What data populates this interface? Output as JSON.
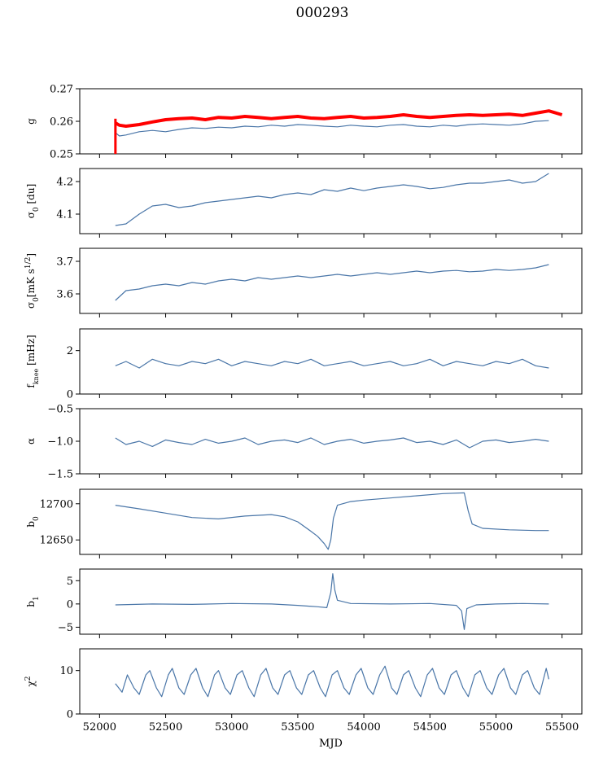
{
  "figure": {
    "title": "000293"
  },
  "style": {
    "series_color": "#4a76a8",
    "reference_color": "#ff0000",
    "axis_color": "#000000"
  },
  "chart_data": [
    {
      "type": "line",
      "ylabel": "g",
      "ylabel_html": "g",
      "xlim": [
        51850,
        55650
      ],
      "ylim": [
        0.25,
        0.27
      ],
      "yticks": [
        0.25,
        0.26,
        0.27
      ],
      "ytick_labels": [
        "0.25",
        "0.26",
        "0.27"
      ],
      "series": [
        {
          "color": "#4a76a8",
          "x": [
            52120,
            52150,
            52200,
            52300,
            52400,
            52500,
            52600,
            52700,
            52800,
            52900,
            53000,
            53100,
            53200,
            53300,
            53400,
            53500,
            53600,
            53700,
            53800,
            53900,
            54000,
            54100,
            54200,
            54300,
            54400,
            54500,
            54600,
            54700,
            54800,
            54900,
            55000,
            55100,
            55200,
            55300,
            55400
          ],
          "y": [
            0.2565,
            0.2555,
            0.2558,
            0.2568,
            0.2572,
            0.2568,
            0.2575,
            0.258,
            0.2578,
            0.2582,
            0.258,
            0.2585,
            0.2583,
            0.2588,
            0.2585,
            0.259,
            0.2588,
            0.2585,
            0.2583,
            0.2588,
            0.2585,
            0.2583,
            0.2588,
            0.259,
            0.2585,
            0.2583,
            0.2588,
            0.2585,
            0.259,
            0.2592,
            0.259,
            0.2588,
            0.2592,
            0.26,
            0.2602
          ]
        },
        {
          "color": "#ff0000",
          "x": [
            52120,
            52150,
            52200,
            52300,
            52400,
            52500,
            52600,
            52700,
            52800,
            52900,
            53000,
            53100,
            53200,
            53300,
            53400,
            53500,
            53600,
            53700,
            53800,
            53900,
            54000,
            54100,
            54200,
            54300,
            54400,
            54500,
            54600,
            54700,
            54800,
            54900,
            55000,
            55100,
            55200,
            55300,
            55400,
            55500
          ],
          "y": [
            0.2595,
            0.2588,
            0.2585,
            0.259,
            0.2598,
            0.2605,
            0.2608,
            0.261,
            0.2605,
            0.2612,
            0.261,
            0.2615,
            0.2612,
            0.2608,
            0.2612,
            0.2615,
            0.261,
            0.2608,
            0.2612,
            0.2615,
            0.261,
            0.2612,
            0.2615,
            0.262,
            0.2615,
            0.2612,
            0.2615,
            0.2618,
            0.262,
            0.2618,
            0.262,
            0.2622,
            0.2618,
            0.2625,
            0.2632,
            0.262
          ]
        }
      ]
    },
    {
      "type": "line",
      "ylabel": "σ0 [du]",
      "ylabel_html": "σ<tspan baseline-shift='sub' font-size='9'>0</tspan> [du]",
      "xlim": [
        51850,
        55650
      ],
      "ylim": [
        4.04,
        4.24
      ],
      "yticks": [
        4.1,
        4.2
      ],
      "ytick_labels": [
        "4.1",
        "4.2"
      ],
      "series": [
        {
          "color": "#4a76a8",
          "x": [
            52120,
            52200,
            52300,
            52400,
            52500,
            52600,
            52700,
            52800,
            52900,
            53000,
            53100,
            53200,
            53300,
            53400,
            53500,
            53600,
            53700,
            53800,
            53900,
            54000,
            54100,
            54200,
            54300,
            54400,
            54500,
            54600,
            54700,
            54800,
            54900,
            55000,
            55100,
            55200,
            55300,
            55400
          ],
          "y": [
            4.065,
            4.07,
            4.1,
            4.125,
            4.13,
            4.12,
            4.125,
            4.135,
            4.14,
            4.145,
            4.15,
            4.155,
            4.15,
            4.16,
            4.165,
            4.16,
            4.175,
            4.17,
            4.18,
            4.172,
            4.18,
            4.185,
            4.19,
            4.185,
            4.178,
            4.182,
            4.19,
            4.195,
            4.195,
            4.2,
            4.205,
            4.195,
            4.2,
            4.225
          ]
        }
      ]
    },
    {
      "type": "line",
      "ylabel": "σ0[mK s^1/2]",
      "ylabel_html": "σ<tspan baseline-shift='sub' font-size='9'>0</tspan>[mK s<tspan baseline-shift='super' font-size='9'>1/2</tspan>]",
      "xlim": [
        51850,
        55650
      ],
      "ylim": [
        3.54,
        3.74
      ],
      "yticks": [
        3.6,
        3.7
      ],
      "ytick_labels": [
        "3.6",
        "3.7"
      ],
      "series": [
        {
          "color": "#4a76a8",
          "x": [
            52120,
            52200,
            52300,
            52400,
            52500,
            52600,
            52700,
            52800,
            52900,
            53000,
            53100,
            53200,
            53300,
            53400,
            53500,
            53600,
            53700,
            53800,
            53900,
            54000,
            54100,
            54200,
            54300,
            54400,
            54500,
            54600,
            54700,
            54800,
            54900,
            55000,
            55100,
            55200,
            55300,
            55400
          ],
          "y": [
            3.58,
            3.61,
            3.615,
            3.625,
            3.63,
            3.625,
            3.635,
            3.63,
            3.64,
            3.645,
            3.64,
            3.65,
            3.645,
            3.65,
            3.655,
            3.65,
            3.655,
            3.66,
            3.655,
            3.66,
            3.665,
            3.66,
            3.665,
            3.67,
            3.665,
            3.67,
            3.672,
            3.668,
            3.67,
            3.675,
            3.672,
            3.675,
            3.68,
            3.69
          ]
        }
      ]
    },
    {
      "type": "line",
      "ylabel": "fknee [mHz]",
      "ylabel_html": "f<tspan baseline-shift='sub' font-size='8'>knee</tspan> [mHz]",
      "xlim": [
        51850,
        55650
      ],
      "ylim": [
        0,
        3
      ],
      "yticks": [
        0,
        2
      ],
      "ytick_labels": [
        "0",
        "2"
      ],
      "series": [
        {
          "color": "#4a76a8",
          "x": [
            52120,
            52200,
            52300,
            52400,
            52500,
            52600,
            52700,
            52800,
            52900,
            53000,
            53100,
            53200,
            53300,
            53400,
            53500,
            53600,
            53700,
            53800,
            53900,
            54000,
            54100,
            54200,
            54300,
            54400,
            54500,
            54600,
            54700,
            54800,
            54900,
            55000,
            55100,
            55200,
            55300,
            55400
          ],
          "y": [
            1.3,
            1.5,
            1.2,
            1.6,
            1.4,
            1.3,
            1.5,
            1.4,
            1.6,
            1.3,
            1.5,
            1.4,
            1.3,
            1.5,
            1.4,
            1.6,
            1.3,
            1.4,
            1.5,
            1.3,
            1.4,
            1.5,
            1.3,
            1.4,
            1.6,
            1.3,
            1.5,
            1.4,
            1.3,
            1.5,
            1.4,
            1.6,
            1.3,
            1.2
          ]
        }
      ]
    },
    {
      "type": "line",
      "ylabel": "α",
      "ylabel_html": "α",
      "xlim": [
        51850,
        55650
      ],
      "ylim": [
        -1.5,
        -0.5
      ],
      "yticks": [
        -1.5,
        -1.0,
        -0.5
      ],
      "ytick_labels": [
        "−1.5",
        "−1.0",
        "−0.5"
      ],
      "series": [
        {
          "color": "#4a76a8",
          "x": [
            52120,
            52200,
            52300,
            52400,
            52500,
            52600,
            52700,
            52800,
            52900,
            53000,
            53100,
            53200,
            53300,
            53400,
            53500,
            53600,
            53700,
            53800,
            53900,
            54000,
            54100,
            54200,
            54300,
            54400,
            54500,
            54600,
            54700,
            54800,
            54900,
            55000,
            55100,
            55200,
            55300,
            55400
          ],
          "y": [
            -0.95,
            -1.05,
            -1.0,
            -1.08,
            -0.98,
            -1.02,
            -1.05,
            -0.97,
            -1.03,
            -1.0,
            -0.95,
            -1.05,
            -1.0,
            -0.98,
            -1.02,
            -0.95,
            -1.05,
            -1.0,
            -0.97,
            -1.03,
            -1.0,
            -0.98,
            -0.95,
            -1.02,
            -1.0,
            -1.05,
            -0.98,
            -1.1,
            -1.0,
            -0.98,
            -1.02,
            -1.0,
            -0.97,
            -1.0
          ]
        }
      ]
    },
    {
      "type": "line",
      "ylabel": "b0",
      "ylabel_html": "b<tspan baseline-shift='sub' font-size='9'>0</tspan>",
      "xlim": [
        51850,
        55650
      ],
      "ylim": [
        12630,
        12720
      ],
      "yticks": [
        12650,
        12700
      ],
      "ytick_labels": [
        "12650",
        "12700"
      ],
      "series": [
        {
          "color": "#4a76a8",
          "x": [
            52120,
            52300,
            52500,
            52700,
            52900,
            53100,
            53300,
            53400,
            53500,
            53600,
            53650,
            53700,
            53730,
            53750,
            53770,
            53800,
            53900,
            54000,
            54200,
            54400,
            54600,
            54760,
            54790,
            54820,
            54900,
            55100,
            55300,
            55400
          ],
          "y": [
            12698,
            12693,
            12687,
            12681,
            12679,
            12683,
            12685,
            12682,
            12675,
            12662,
            12655,
            12645,
            12637,
            12650,
            12680,
            12698,
            12703,
            12705,
            12708,
            12711,
            12714,
            12715,
            12690,
            12672,
            12666,
            12664,
            12663,
            12663
          ]
        }
      ]
    },
    {
      "type": "line",
      "ylabel": "b1",
      "ylabel_html": "b<tspan baseline-shift='sub' font-size='9'>1</tspan>",
      "xlim": [
        51850,
        55650
      ],
      "ylim": [
        -6.5,
        7.5
      ],
      "yticks": [
        -5,
        0,
        5
      ],
      "ytick_labels": [
        "−5",
        "0",
        "5"
      ],
      "series": [
        {
          "color": "#4a76a8",
          "x": [
            52120,
            52400,
            52700,
            53000,
            53300,
            53500,
            53650,
            53720,
            53750,
            53765,
            53780,
            53800,
            53900,
            54200,
            54500,
            54700,
            54740,
            54760,
            54780,
            54850,
            55000,
            55200,
            55400
          ],
          "y": [
            -0.2,
            0.0,
            -0.1,
            0.1,
            0.0,
            -0.3,
            -0.6,
            -0.8,
            2.5,
            6.5,
            3.0,
            0.8,
            0.1,
            0.0,
            0.1,
            -0.3,
            -1.5,
            -5.5,
            -1.0,
            -0.2,
            0.0,
            0.1,
            0.0
          ]
        }
      ]
    },
    {
      "type": "line",
      "ylabel": "χ2",
      "ylabel_html": "χ<tspan baseline-shift='super' font-size='9'>2</tspan>",
      "xlim": [
        51850,
        55650
      ],
      "ylim": [
        0,
        15
      ],
      "yticks": [
        0,
        10
      ],
      "ytick_labels": [
        "0",
        "10"
      ],
      "xticks": [
        52000,
        52500,
        53000,
        53500,
        54000,
        54500,
        55000,
        55500
      ],
      "xtick_labels": [
        "52000",
        "52500",
        "53000",
        "53500",
        "54000",
        "54500",
        "55000",
        "55500"
      ],
      "xlabel": "MJD",
      "series": [
        {
          "color": "#4a76a8",
          "x": [
            52120,
            52170,
            52210,
            52260,
            52300,
            52350,
            52380,
            52430,
            52470,
            52520,
            52550,
            52600,
            52640,
            52690,
            52730,
            52780,
            52820,
            52870,
            52900,
            52950,
            52990,
            53040,
            53080,
            53130,
            53170,
            53220,
            53260,
            53310,
            53350,
            53400,
            53440,
            53490,
            53530,
            53580,
            53620,
            53670,
            53710,
            53760,
            53800,
            53850,
            53890,
            53940,
            53980,
            54030,
            54070,
            54120,
            54160,
            54210,
            54250,
            54300,
            54340,
            54390,
            54430,
            54480,
            54520,
            54570,
            54610,
            54660,
            54700,
            54750,
            54790,
            54840,
            54880,
            54930,
            54970,
            55020,
            55060,
            55110,
            55150,
            55200,
            55240,
            55290,
            55330,
            55380,
            55400
          ],
          "y": [
            7,
            5,
            9,
            6,
            4.5,
            9,
            10,
            6,
            4,
            9,
            10.5,
            6,
            4.5,
            9,
            10.5,
            6,
            4,
            9,
            10,
            6,
            4.5,
            9,
            10,
            6,
            4,
            9,
            10.5,
            6,
            4.5,
            9,
            10,
            6,
            4.5,
            9,
            10,
            6,
            4,
            9,
            10,
            6,
            4.5,
            9,
            10.5,
            6,
            4.5,
            9,
            11,
            6,
            4.5,
            9,
            10,
            6,
            4,
            9,
            10.5,
            6,
            4.5,
            9,
            10,
            6,
            4,
            9,
            10,
            6,
            4.5,
            9,
            10.5,
            6,
            4.5,
            9,
            10,
            6,
            4.5,
            10.5,
            8
          ]
        }
      ]
    }
  ]
}
